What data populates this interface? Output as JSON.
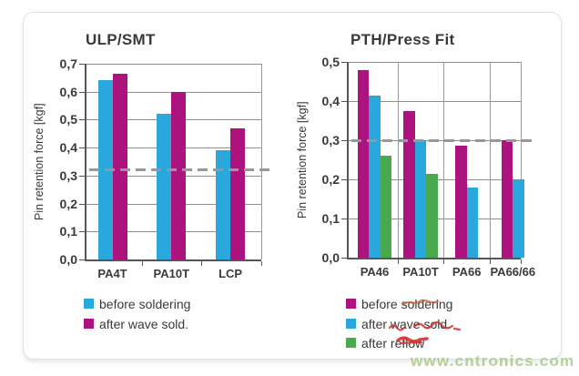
{
  "watermark": "www.cntronics.com",
  "colors": {
    "blue": "#2aa7dd",
    "magenta": "#ac137e",
    "green": "#4aa84d",
    "reference": "#98989a",
    "annotation_red": "#d23030",
    "annotation_orange": "#c25c28",
    "watermark_green": "#a8cf8a"
  },
  "chart_data": [
    {
      "type": "bar",
      "title": "ULP/SMT",
      "ylabel": "Pin retention force [kgf]",
      "ylim": [
        0,
        0.7
      ],
      "yticks": [
        "0,7",
        "0,6",
        "0,5",
        "0,4",
        "0,3",
        "0,2",
        "0,1",
        "0,0"
      ],
      "categories": [
        "PA4T",
        "PA10T",
        "LCP"
      ],
      "series": [
        {
          "name": "before soldering",
          "color_key": "blue",
          "values": [
            0.64,
            0.52,
            0.39
          ]
        },
        {
          "name": "after wave sold.",
          "color_key": "magenta",
          "values": [
            0.665,
            0.6,
            0.47
          ]
        }
      ],
      "reference_line": 0.32,
      "grid": true,
      "legend_position": "bottom"
    },
    {
      "type": "bar",
      "title": "PTH/Press Fit",
      "ylabel": "Pin retention force [kgf]",
      "ylim": [
        0,
        0.5
      ],
      "yticks": [
        "0,5",
        "0,4",
        "0,3",
        "0,2",
        "0,1",
        "0,0"
      ],
      "categories": [
        "PA46",
        "PA10T",
        "PA66",
        "PA66/66"
      ],
      "series": [
        {
          "name": "before soldering",
          "color_key": "magenta",
          "values": [
            0.48,
            0.375,
            0.285,
            0.3
          ]
        },
        {
          "name": "after wave sold.",
          "color_key": "blue",
          "values": [
            0.415,
            0.3,
            0.18,
            0.2
          ]
        },
        {
          "name": "after reflow",
          "color_key": "green",
          "values": [
            0.26,
            0.215,
            null,
            null
          ]
        }
      ],
      "reference_line": 0.3,
      "grid": true,
      "legend_position": "bottom"
    }
  ],
  "annotations": [
    {
      "type": "red-scribble",
      "over": "soldering"
    },
    {
      "type": "red-scribble",
      "over": "wave sold."
    },
    {
      "type": "red-scribble",
      "over": "reflow"
    }
  ]
}
